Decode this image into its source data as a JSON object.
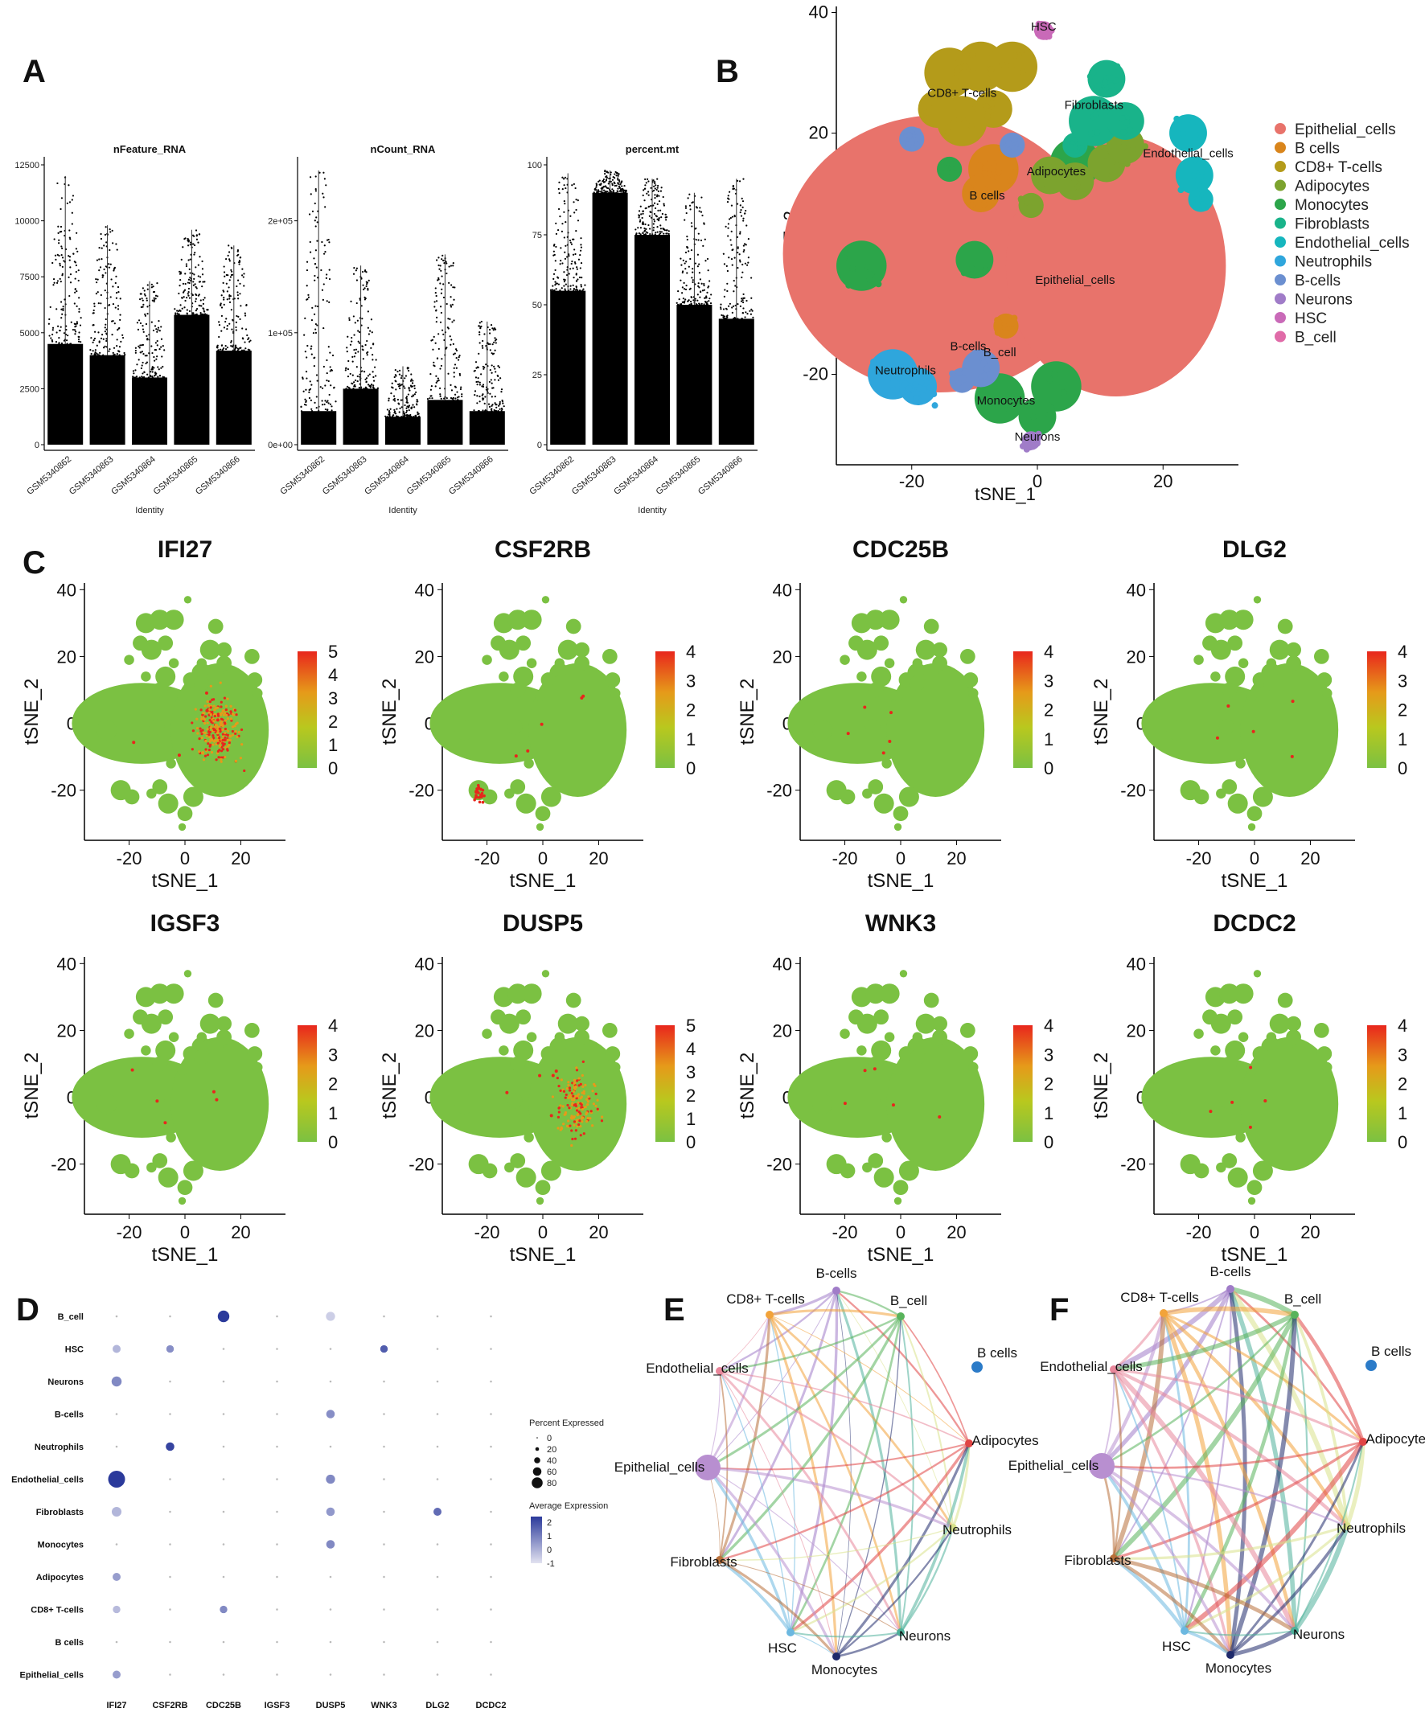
{
  "panel_labels": [
    "A",
    "B",
    "C",
    "D",
    "E",
    "F"
  ],
  "colors": {
    "epithelial": "#E8736B",
    "bcells": "#D9851C",
    "cd8": "#B49B1A",
    "adipocytes": "#7CA32E",
    "monocytes": "#2CA54A",
    "fibroblasts": "#19B38A",
    "endothelial": "#16B6BE",
    "neutrophils": "#2FA6DC",
    "bcells2": "#6B8FD0",
    "neurons": "#A07CC8",
    "hsc": "#C96AB8",
    "bcell": "#E06BA8",
    "expr_low": "#7BC142",
    "expr_high": "#E8261C"
  },
  "chart_data": [
    {
      "type": "violin-jitter",
      "panel": "A",
      "title": "nFeature_RNA",
      "xlabel": "Identity",
      "categories": [
        "GSM5340862",
        "GSM5340863",
        "GSM5340864",
        "GSM5340865",
        "GSM5340866"
      ],
      "ylim": [
        0,
        12500
      ],
      "yticks": [
        "0",
        "2500",
        "5000",
        "7500",
        "10000",
        "12500"
      ],
      "tick_values": [
        0,
        2500,
        5000,
        7500,
        10000,
        12500
      ],
      "max_values": [
        12000,
        9800,
        7300,
        9600,
        8900
      ],
      "dense_values": [
        4500,
        4000,
        3000,
        5800,
        4200
      ]
    },
    {
      "type": "violin-jitter",
      "panel": "A",
      "title": "nCount_RNA",
      "xlabel": "Identity",
      "categories": [
        "GSM5340862",
        "GSM5340863",
        "GSM5340864",
        "GSM5340865",
        "GSM5340866"
      ],
      "ylim": [
        0,
        250000
      ],
      "yticks": [
        "0e+00",
        "1e+05",
        "2e+05"
      ],
      "tick_values": [
        0,
        100000,
        200000
      ],
      "max_values": [
        245000,
        160000,
        70000,
        170000,
        110000
      ],
      "dense_values": [
        30000,
        50000,
        25000,
        40000,
        30000
      ]
    },
    {
      "type": "violin-jitter",
      "panel": "A",
      "title": "percent.mt",
      "xlabel": "Identity",
      "categories": [
        "GSM5340862",
        "GSM5340863",
        "GSM5340864",
        "GSM5340865",
        "GSM5340866"
      ],
      "ylim": [
        0,
        100
      ],
      "yticks": [
        "0",
        "25",
        "50",
        "75",
        "100"
      ],
      "tick_values": [
        0,
        25,
        50,
        75,
        100
      ],
      "max_values": [
        97,
        98,
        95,
        90,
        95
      ],
      "dense_values": [
        55,
        90,
        75,
        50,
        45
      ]
    },
    {
      "type": "scatter",
      "panel": "B",
      "xlabel": "tSNE_1",
      "ylabel": "tSNE_2",
      "xticks": [
        "-20",
        "0",
        "20"
      ],
      "xtick_values": [
        -20,
        0,
        20
      ],
      "yticks": [
        "-20",
        "0",
        "20",
        "40"
      ],
      "ytick_values": [
        -20,
        0,
        20,
        40
      ],
      "xlim": [
        -32,
        32
      ],
      "ylim": [
        -35,
        41
      ],
      "legend": [
        "Epithelial_cells",
        "B cells",
        "CD8+ T-cells",
        "Adipocytes",
        "Monocytes",
        "Fibroblasts",
        "Endothelial_cells",
        "Neutrophils",
        "B-cells",
        "Neurons",
        "HSC",
        "B_cell"
      ],
      "cluster_labels": [
        {
          "text": "HSC",
          "x": 1,
          "y": 37
        },
        {
          "text": "CD8+ T-cells",
          "x": -12,
          "y": 26
        },
        {
          "text": "Fibroblasts",
          "x": 9,
          "y": 24
        },
        {
          "text": "Endothelial_cells",
          "x": 24,
          "y": 16
        },
        {
          "text": "Adipocytes",
          "x": 3,
          "y": 13
        },
        {
          "text": "B cells",
          "x": -8,
          "y": 9
        },
        {
          "text": "Epithelial_cells",
          "x": 6,
          "y": -5
        },
        {
          "text": "B-cells",
          "x": -11,
          "y": -16
        },
        {
          "text": "B_cell",
          "x": -6,
          "y": -17
        },
        {
          "text": "Neutrophils",
          "x": -21,
          "y": -20
        },
        {
          "text": "Monocytes",
          "x": -5,
          "y": -25
        },
        {
          "text": "Neurons",
          "x": 0,
          "y": -31
        }
      ]
    },
    {
      "type": "feature-plots",
      "panel": "C",
      "xlabel": "tSNE_1",
      "ylabel": "tSNE_2",
      "xticks": [
        "-20",
        "0",
        "20"
      ],
      "yticks": [
        "-20",
        "0",
        "20",
        "40"
      ],
      "genes": [
        {
          "name": "IFI27",
          "scale": [
            "0",
            "1",
            "2",
            "3",
            "4",
            "5"
          ],
          "max": 5
        },
        {
          "name": "CSF2RB",
          "scale": [
            "0",
            "1",
            "2",
            "3",
            "4"
          ],
          "max": 4
        },
        {
          "name": "CDC25B",
          "scale": [
            "0",
            "1",
            "2",
            "3",
            "4"
          ],
          "max": 4
        },
        {
          "name": "DLG2",
          "scale": [
            "0",
            "1",
            "2",
            "3",
            "4"
          ],
          "max": 4
        },
        {
          "name": "IGSF3",
          "scale": [
            "0",
            "1",
            "2",
            "3",
            "4"
          ],
          "max": 4
        },
        {
          "name": "DUSP5",
          "scale": [
            "0",
            "1",
            "2",
            "3",
            "4",
            "5"
          ],
          "max": 5
        },
        {
          "name": "WNK3",
          "scale": [
            "0",
            "1",
            "2",
            "3",
            "4"
          ],
          "max": 4
        },
        {
          "name": "DCDC2",
          "scale": [
            "0",
            "1",
            "2",
            "3",
            "4"
          ],
          "max": 4
        }
      ]
    },
    {
      "type": "dotplot",
      "panel": "D",
      "genes": [
        "IFI27",
        "CSF2RB",
        "CDC25B",
        "IGSF3",
        "DUSP5",
        "WNK3",
        "DLG2",
        "DCDC2"
      ],
      "cell_types": [
        "B_cell",
        "HSC",
        "Neurons",
        "B-cells",
        "Neutrophils",
        "Endothelial_cells",
        "Fibroblasts",
        "Monocytes",
        "Adipocytes",
        "CD8+ T-cells",
        "B cells",
        "Epithelial_cells"
      ],
      "pct_legend_title": "Percent Expressed",
      "pct_legend": [
        "0",
        "20",
        "40",
        "60",
        "80"
      ],
      "expr_legend_title": "Average Expression",
      "expr_legend": [
        "2",
        "1",
        "0",
        "-1"
      ],
      "values": [
        {
          "cell": "B_cell",
          "gene": "CDC25B",
          "pct": 30,
          "avg": 2.2
        },
        {
          "cell": "B_cell",
          "gene": "DUSP5",
          "pct": 15,
          "avg": -0.8
        },
        {
          "cell": "HSC",
          "gene": "IFI27",
          "pct": 10,
          "avg": -0.3
        },
        {
          "cell": "HSC",
          "gene": "CSF2RB",
          "pct": 8,
          "avg": 0.5
        },
        {
          "cell": "HSC",
          "gene": "WNK3",
          "pct": 8,
          "avg": 1.5
        },
        {
          "cell": "Neurons",
          "gene": "IFI27",
          "pct": 20,
          "avg": 0.6
        },
        {
          "cell": "B-cells",
          "gene": "DUSP5",
          "pct": 12,
          "avg": 0.5
        },
        {
          "cell": "Neutrophils",
          "gene": "CSF2RB",
          "pct": 12,
          "avg": 2.0
        },
        {
          "cell": "Endothelial_cells",
          "gene": "IFI27",
          "pct": 80,
          "avg": 2.2
        },
        {
          "cell": "Endothelial_cells",
          "gene": "DUSP5",
          "pct": 15,
          "avg": 0.6
        },
        {
          "cell": "Fibroblasts",
          "gene": "IFI27",
          "pct": 18,
          "avg": -0.3
        },
        {
          "cell": "Fibroblasts",
          "gene": "DUSP5",
          "pct": 12,
          "avg": 0.3
        },
        {
          "cell": "Fibroblasts",
          "gene": "DLG2",
          "pct": 10,
          "avg": 1.2
        },
        {
          "cell": "Monocytes",
          "gene": "DUSP5",
          "pct": 12,
          "avg": 0.6
        },
        {
          "cell": "Adipocytes",
          "gene": "IFI27",
          "pct": 10,
          "avg": 0.2
        },
        {
          "cell": "CD8+ T-cells",
          "gene": "IFI27",
          "pct": 8,
          "avg": -0.4
        },
        {
          "cell": "CD8+ T-cells",
          "gene": "CDC25B",
          "pct": 8,
          "avg": 0.6
        },
        {
          "cell": "Epithelial_cells",
          "gene": "IFI27",
          "pct": 10,
          "avg": 0.2
        }
      ]
    },
    {
      "type": "network",
      "panel": "E",
      "nodes": [
        "B-cells",
        "CD8+ T-cells",
        "B_cell",
        "B cells",
        "Endothelial_cells",
        "Adipocytes",
        "Epithelial_cells",
        "Neutrophils",
        "Fibroblasts",
        "Neurons",
        "HSC",
        "Monocytes"
      ]
    },
    {
      "type": "network",
      "panel": "F",
      "nodes": [
        "B-cells",
        "CD8+ T-cells",
        "B_cell",
        "B cells",
        "Endothelial_cells",
        "Adipocytes",
        "Epithelial_cells",
        "Neutrophils",
        "Fibroblasts",
        "Neurons",
        "HSC",
        "Monocytes"
      ]
    }
  ]
}
